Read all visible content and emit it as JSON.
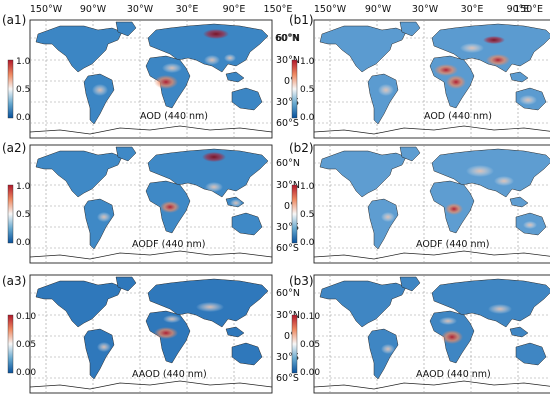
{
  "top_lon_ticks": [
    "150°W",
    "90°W",
    "30°W",
    "30°E",
    "90°E",
    "150°E"
  ],
  "lat_ticks": [
    "60°N",
    "30°N",
    "0°",
    "30°S",
    "60°S"
  ],
  "panels": [
    {
      "id": "a1",
      "label": "(a1)",
      "variable": "AOD (440 nm)",
      "cb_ticks": [
        "1.0",
        "0.5",
        "0.0"
      ],
      "land_color": "#3c86c4",
      "style": "aod_a"
    },
    {
      "id": "b1",
      "label": "(b1)",
      "variable": "AOD (440 nm)",
      "cb_ticks": [
        "1.0",
        "0.5",
        "0.0"
      ],
      "land_color": "#5b9bd0",
      "style": "aod_b"
    },
    {
      "id": "a2",
      "label": "(a2)",
      "variable": "AODF (440 nm)",
      "cb_ticks": [
        "1.0",
        "0.5",
        "0.0"
      ],
      "land_color": "#3f89c6",
      "style": "aodf_a"
    },
    {
      "id": "b2",
      "label": "(b2)",
      "variable": "AODF (440 nm)",
      "cb_ticks": [
        "1.0",
        "0.5",
        "0.0"
      ],
      "land_color": "#5e9dd1",
      "style": "aodf_b"
    },
    {
      "id": "a3",
      "label": "(a3)",
      "variable": "AAOD (440 nm)",
      "cb_ticks": [
        "0.10",
        "0.05",
        "0.00"
      ],
      "land_color": "#2f78bb",
      "style": "aaod_a"
    },
    {
      "id": "b3",
      "label": "(b3)",
      "variable": "AAOD (440 nm)",
      "cb_ticks": [
        "0.10",
        "0.05",
        "0.00"
      ],
      "land_color": "#3f86c3",
      "style": "aaod_b"
    }
  ],
  "colormap": {
    "high": "#b2182b",
    "mid_high": "#ef8a62",
    "mid": "#f7f7f7",
    "mid_low": "#67a9cf",
    "low": "#08519c"
  }
}
